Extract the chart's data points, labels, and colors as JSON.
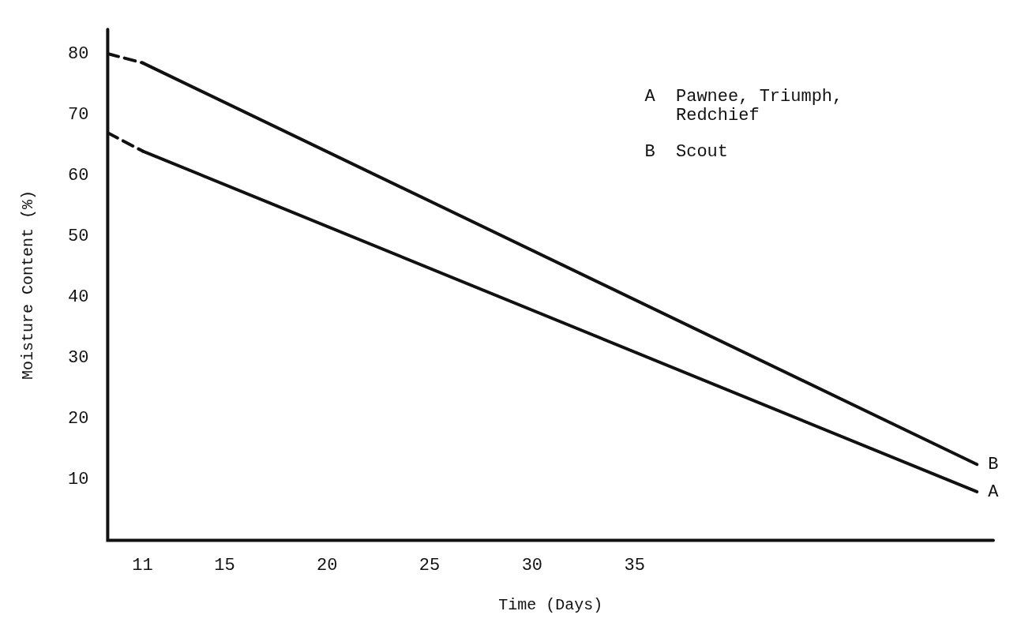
{
  "chart_data": {
    "type": "line",
    "xlabel": "Time (Days)",
    "ylabel": "Moisture Content (%)",
    "xlim": [
      9.3,
      52.5
    ],
    "xticks": [
      11,
      15,
      20,
      25,
      30,
      35
    ],
    "ylim": [
      0,
      84
    ],
    "yticks": [
      10,
      20,
      30,
      40,
      50,
      60,
      70,
      80
    ],
    "grid": false,
    "legend": false,
    "marker": "none",
    "series": [
      {
        "x": [
          9.3,
          11
        ],
        "values": [
          80,
          78.5
        ],
        "color": "#111111",
        "line_style": "dashed"
      },
      {
        "name": "B",
        "x": [
          11,
          51.7
        ],
        "values": [
          78.5,
          12.5
        ],
        "color": "#111111",
        "line_style": "solid"
      },
      {
        "x": [
          9.3,
          11
        ],
        "values": [
          67,
          64
        ],
        "color": "#111111",
        "line_style": "dashed"
      },
      {
        "name": "A",
        "x": [
          11,
          51.7
        ],
        "values": [
          64,
          8
        ],
        "color": "#111111",
        "line_style": "solid"
      }
    ],
    "annotations": [
      "A  Pawnee, Triumph,\n   Redchief",
      "B  Scout"
    ]
  }
}
